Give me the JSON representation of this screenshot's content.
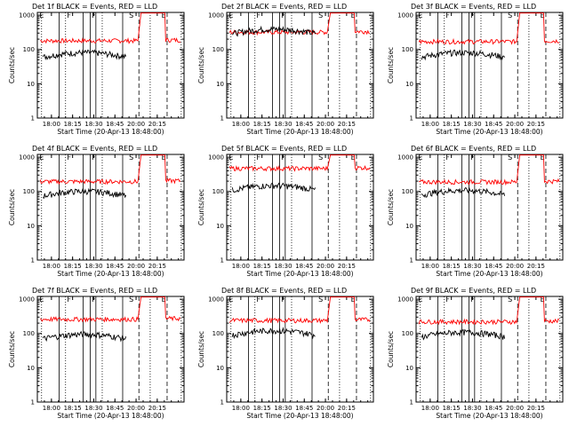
{
  "figure": {
    "xlabel": "Start Time (20-Apr-13 18:48:00)",
    "ylabel": "Counts/sec",
    "title_suffix": "BLACK = Events, RED = LLD",
    "x_tick_labels": [
      "18:00",
      "18:15",
      "18:30",
      "18:45",
      "20:00",
      "20:15"
    ],
    "y_tick_labels": [
      "1",
      "10",
      "100",
      "1000"
    ],
    "colors": {
      "events": "#000000",
      "lld": "#ff0000",
      "axes": "#000000"
    }
  },
  "chart_data": [
    {
      "type": "line",
      "title": "Det 1f",
      "series": [
        {
          "name": "BLACK = Events",
          "level": 60
        },
        {
          "name": "RED = LLD",
          "level": 180
        }
      ]
    },
    {
      "type": "line",
      "title": "Det 2f",
      "series": [
        {
          "name": "BLACK = Events",
          "level": 290
        },
        {
          "name": "RED = LLD",
          "level": 320
        }
      ]
    },
    {
      "type": "line",
      "title": "Det 3f",
      "series": [
        {
          "name": "BLACK = Events",
          "level": 60
        },
        {
          "name": "RED = LLD",
          "level": 170
        }
      ]
    },
    {
      "type": "line",
      "title": "Det 4f",
      "series": [
        {
          "name": "BLACK = Events",
          "level": 75
        },
        {
          "name": "RED = LLD",
          "level": 195
        }
      ]
    },
    {
      "type": "line",
      "title": "Det 5f",
      "series": [
        {
          "name": "BLACK = Events",
          "level": 110
        },
        {
          "name": "RED = LLD",
          "level": 470
        }
      ]
    },
    {
      "type": "line",
      "title": "Det 6f",
      "series": [
        {
          "name": "BLACK = Events",
          "level": 80
        },
        {
          "name": "RED = LLD",
          "level": 190
        }
      ]
    },
    {
      "type": "line",
      "title": "Det 7f",
      "series": [
        {
          "name": "BLACK = Events",
          "level": 70
        },
        {
          "name": "RED = LLD",
          "level": 260
        }
      ]
    },
    {
      "type": "line",
      "title": "Det 8f",
      "series": [
        {
          "name": "BLACK = Events",
          "level": 90
        },
        {
          "name": "RED = LLD",
          "level": 240
        }
      ]
    },
    {
      "type": "line",
      "title": "Det 9f",
      "series": [
        {
          "name": "BLACK = Events",
          "level": 80
        },
        {
          "name": "RED = LLD",
          "level": 220
        }
      ]
    }
  ],
  "markers": {
    "letters": [
      "E",
      "F",
      "F",
      "S",
      "E"
    ],
    "solid_lines_min": [
      5.5,
      22.5,
      27.5,
      31.5,
      50.5
    ],
    "dashed_lines_min": [
      62,
      82
    ],
    "dotted_lines_min": [
      -7,
      10,
      36,
      70,
      92
    ]
  },
  "x_ticks_min": [
    0,
    15,
    30,
    45,
    60,
    75
  ]
}
